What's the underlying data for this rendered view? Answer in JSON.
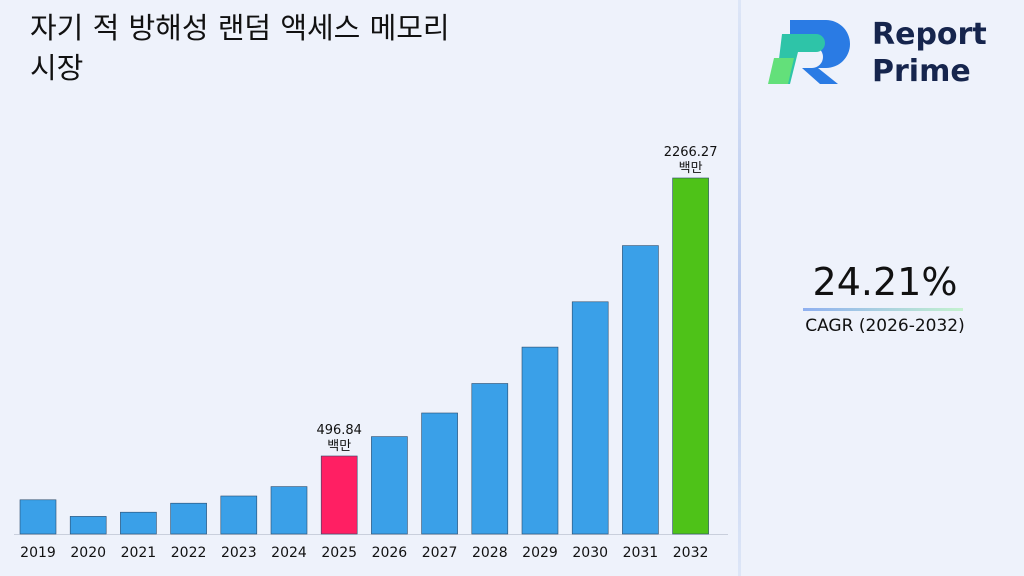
{
  "title": "자기 적 방해성 랜덤 액세스 메모리 시장",
  "logo": {
    "line1": "Report",
    "line2": "Prime",
    "colors": [
      "#2a7be4",
      "#2ec4a8",
      "#63e07a"
    ]
  },
  "cagr": {
    "value": "24.21%",
    "label": "CAGR (2026-2032)"
  },
  "colors": {
    "default_bar": "#3aa0e8",
    "highlight_current": "#ff1f63",
    "highlight_forecast": "#4ec218"
  },
  "chart_data": {
    "type": "bar",
    "title": "자기 적 방해성 랜덤 액세스 메모리 시장",
    "xlabel": "",
    "ylabel": "",
    "categories": [
      "2019",
      "2020",
      "2021",
      "2022",
      "2023",
      "2024",
      "2025",
      "2026",
      "2027",
      "2028",
      "2029",
      "2030",
      "2031",
      "2032"
    ],
    "values": [
      218,
      112,
      139,
      196,
      242,
      302,
      496.84,
      620,
      770,
      958,
      1190,
      1478,
      1836,
      2266.27
    ],
    "annotations": [
      {
        "category": "2025",
        "value_text": "496.84",
        "unit": "백만"
      },
      {
        "category": "2032",
        "value_text": "2266.27",
        "unit": "백만"
      }
    ],
    "highlight": {
      "2025": "current",
      "2032": "forecast"
    },
    "grid": false
  }
}
